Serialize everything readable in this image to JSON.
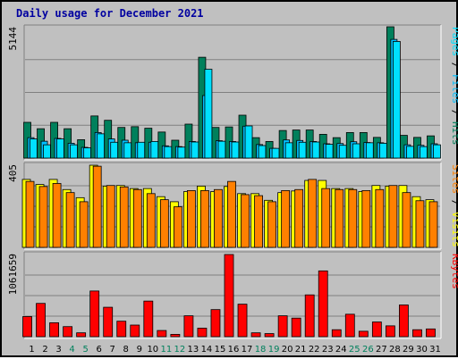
{
  "title": "Daily usage for December 2021",
  "colors": {
    "hits": "#00805c",
    "files": "#00c0ff",
    "pages": "#00e0ff",
    "visits": "#ffff00",
    "sites": "#ff8000",
    "kbytes": "#ff0000",
    "weekday_label": "#000000",
    "weekend_label": "#00805c"
  },
  "chart_data": [
    {
      "type": "bar",
      "panel": "hits-files-pages",
      "ylabel_max": "5144",
      "ylim": [
        0,
        5144
      ],
      "axis_label_parts": [
        "Pages",
        "Files",
        "Hits"
      ],
      "categories": [
        "1",
        "2",
        "3",
        "4",
        "5",
        "6",
        "7",
        "8",
        "9",
        "10",
        "11",
        "12",
        "13",
        "14",
        "15",
        "16",
        "17",
        "18",
        "19",
        "20",
        "21",
        "22",
        "23",
        "24",
        "25",
        "26",
        "27",
        "28",
        "29",
        "30",
        "31"
      ],
      "series": [
        {
          "name": "Hits",
          "values": [
            1400,
            1150,
            1400,
            1150,
            720,
            1650,
            1480,
            1200,
            1230,
            1170,
            1020,
            700,
            1330,
            3950,
            1200,
            1220,
            1680,
            800,
            650,
            1080,
            1100,
            1100,
            930,
            800,
            1000,
            1000,
            810,
            5144,
            890,
            810,
            870
          ]
        },
        {
          "name": "Files",
          "values": [
            800,
            660,
            770,
            580,
            420,
            1000,
            750,
            700,
            600,
            620,
            480,
            450,
            650,
            2450,
            680,
            650,
            1250,
            530,
            380,
            710,
            690,
            650,
            560,
            570,
            640,
            610,
            600,
            4650,
            520,
            500,
            560
          ]
        },
        {
          "name": "Pages",
          "values": [
            750,
            520,
            750,
            520,
            400,
            950,
            620,
            600,
            620,
            650,
            450,
            430,
            630,
            3480,
            660,
            630,
            1260,
            490,
            380,
            600,
            620,
            630,
            540,
            500,
            560,
            600,
            580,
            4570,
            460,
            450,
            520
          ]
        }
      ]
    },
    {
      "type": "bar",
      "panel": "visits-sites",
      "ylabel_max": "405",
      "ylim": [
        0,
        405
      ],
      "axis_label_parts": [
        "Sites",
        "Visits"
      ],
      "categories": [
        "1",
        "2",
        "3",
        "4",
        "5",
        "6",
        "7",
        "8",
        "9",
        "10",
        "11",
        "12",
        "13",
        "14",
        "15",
        "16",
        "17",
        "18",
        "19",
        "20",
        "21",
        "22",
        "23",
        "24",
        "25",
        "26",
        "27",
        "28",
        "29",
        "30",
        "31"
      ],
      "series": [
        {
          "name": "Visits",
          "values": [
            335,
            310,
            335,
            285,
            245,
            405,
            302,
            305,
            290,
            290,
            250,
            225,
            275,
            302,
            275,
            300,
            265,
            265,
            232,
            270,
            278,
            330,
            330,
            290,
            290,
            275,
            305,
            302,
            305,
            250,
            235
          ]
        },
        {
          "name": "Sites",
          "values": [
            325,
            300,
            315,
            270,
            225,
            400,
            305,
            298,
            285,
            265,
            235,
            200,
            280,
            280,
            285,
            325,
            260,
            255,
            225,
            280,
            285,
            335,
            290,
            285,
            285,
            280,
            285,
            305,
            270,
            230,
            225
          ]
        }
      ]
    },
    {
      "type": "bar",
      "panel": "kbytes",
      "ylabel_max": "1061659",
      "ylim": [
        0,
        1061659
      ],
      "axis_label_parts": [
        "KBytes"
      ],
      "categories": [
        "1",
        "2",
        "3",
        "4",
        "5",
        "6",
        "7",
        "8",
        "9",
        "10",
        "11",
        "12",
        "13",
        "14",
        "15",
        "16",
        "17",
        "18",
        "19",
        "20",
        "21",
        "22",
        "23",
        "24",
        "25",
        "26",
        "27",
        "28",
        "29",
        "30",
        "31"
      ],
      "series": [
        {
          "name": "KBytes",
          "values": [
            260000,
            430000,
            180000,
            130000,
            50000,
            590000,
            380000,
            200000,
            150000,
            460000,
            80000,
            30000,
            270000,
            110000,
            350000,
            1061659,
            420000,
            50000,
            40000,
            270000,
            240000,
            540000,
            850000,
            90000,
            290000,
            70000,
            190000,
            140000,
            410000,
            90000,
            100000
          ]
        }
      ]
    }
  ]
}
